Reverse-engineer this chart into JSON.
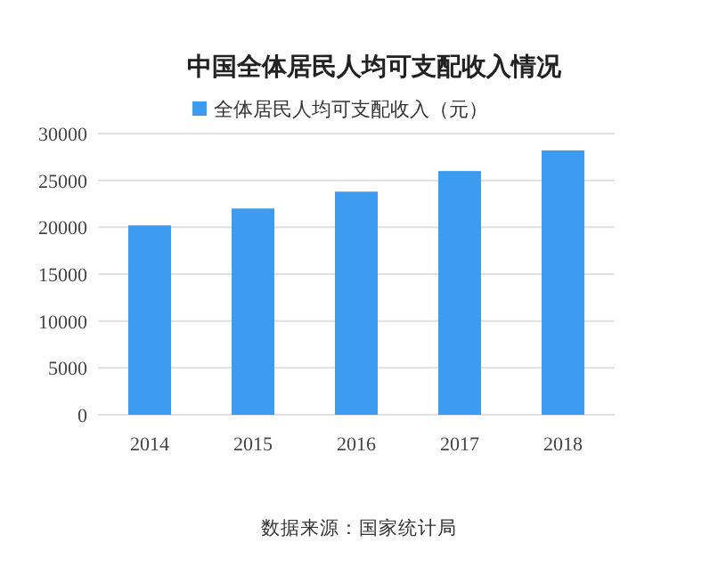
{
  "chart_data": {
    "type": "bar",
    "title": "中国全体居民人均可支配收入情况",
    "categories": [
      "2014",
      "2015",
      "2016",
      "2017",
      "2018"
    ],
    "series": [
      {
        "name": "全体居民人均可支配收入（元）",
        "color": "#3d9cf0",
        "values": [
          20200,
          22000,
          23800,
          26000,
          28200
        ]
      }
    ],
    "ylim": [
      0,
      30000
    ],
    "yticks": [
      0,
      5000,
      10000,
      15000,
      20000,
      25000,
      30000
    ],
    "grid": "y",
    "legend": "top",
    "annotations": [
      "数据来源：国家统计局"
    ]
  }
}
